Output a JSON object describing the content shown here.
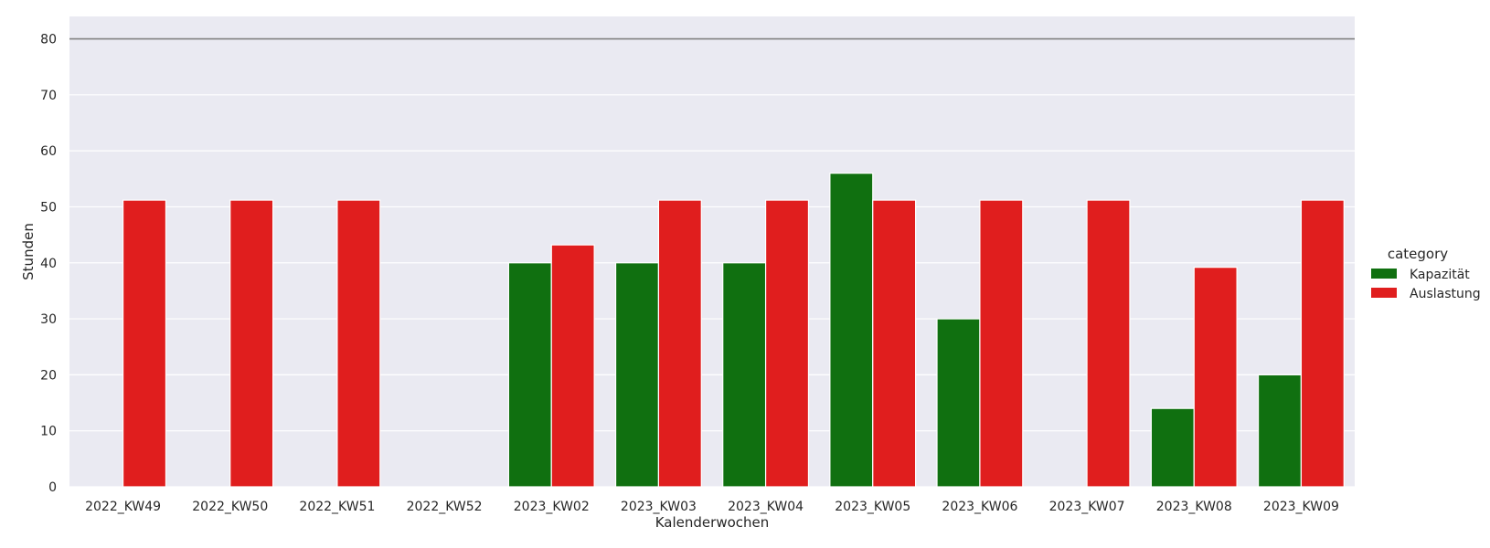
{
  "chart_data": {
    "type": "bar",
    "title": "",
    "xlabel": "Kalenderwochen",
    "ylabel": "Stunden",
    "categories": [
      "2022_KW49",
      "2022_KW50",
      "2022_KW51",
      "2022_KW52",
      "2023_KW02",
      "2023_KW03",
      "2023_KW04",
      "2023_KW05",
      "2023_KW06",
      "2023_KW07",
      "2023_KW08",
      "2023_KW09"
    ],
    "series": [
      {
        "name": "Kapazität",
        "color": "#107010",
        "values": [
          0,
          0,
          0,
          0,
          40,
          40,
          40,
          56,
          30,
          0,
          14,
          20
        ]
      },
      {
        "name": "Auslastung",
        "color": "#e01e1e",
        "values": [
          51.2,
          51.2,
          51.2,
          0,
          43.2,
          51.2,
          51.2,
          51.2,
          51.2,
          51.2,
          39.2,
          51.2
        ]
      }
    ],
    "ylim": [
      0,
      84
    ],
    "yticks": [
      0,
      10,
      20,
      30,
      40,
      50,
      60,
      70,
      80
    ],
    "reference_line": {
      "y": 80,
      "color": "#808080"
    },
    "grid": true,
    "background": "#eaeaf2",
    "legend": {
      "title": "category",
      "placement": "right"
    }
  }
}
